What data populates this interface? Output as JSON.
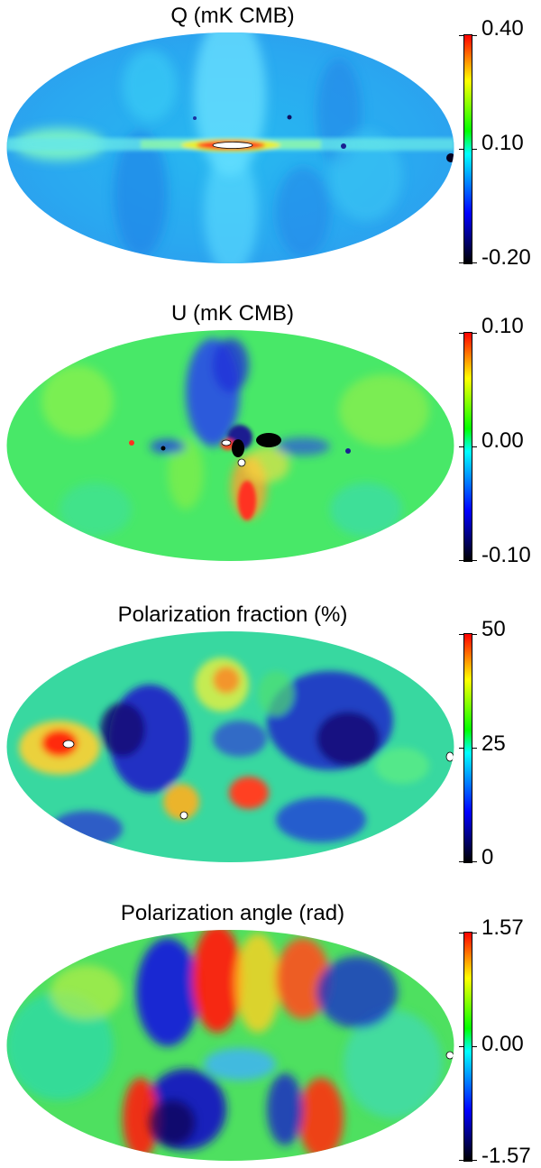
{
  "panels": [
    {
      "title": "Q (mK CMB)",
      "scale_max": "0.40",
      "scale_mid": "0.10",
      "scale_min": "-0.20",
      "map_type": "q"
    },
    {
      "title": "U (mK CMB)",
      "scale_max": "0.10",
      "scale_mid": "0.00",
      "scale_min": "-0.10",
      "map_type": "u"
    },
    {
      "title": "Polarization fraction (%)",
      "scale_max": "50",
      "scale_mid": "25",
      "scale_min": "0",
      "map_type": "frac"
    },
    {
      "title": "Polarization angle (rad)",
      "scale_max": "1.57",
      "scale_mid": "0.00",
      "scale_min": "-1.57",
      "map_type": "angle"
    }
  ],
  "colors": {
    "colorbar_top": "#ff0000",
    "colorbar_upper": "#ffff00",
    "colorbar_mid_upper": "#00ff00",
    "colorbar_mid": "#00ffff",
    "colorbar_lower": "#0000ff",
    "colorbar_bottom": "#000000"
  }
}
